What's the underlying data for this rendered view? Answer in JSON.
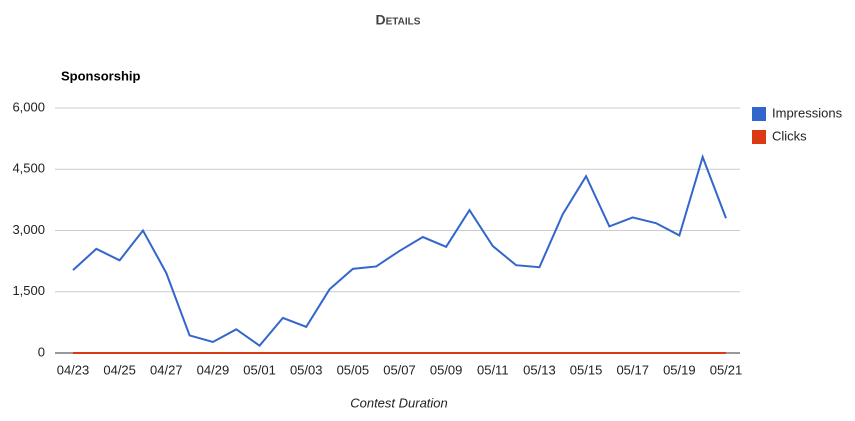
{
  "chart_data": {
    "type": "line",
    "title": "Details",
    "subtitle": "Sponsorship",
    "x_label": "Contest Duration",
    "categories": [
      "04/23",
      null,
      "04/25",
      null,
      "04/27",
      null,
      "04/29",
      null,
      "05/01",
      null,
      "05/03",
      null,
      "05/05",
      null,
      "05/07",
      null,
      "05/09",
      null,
      "05/11",
      null,
      "05/13",
      null,
      "05/15",
      null,
      "05/17",
      null,
      "05/19",
      null,
      "05/21"
    ],
    "series": [
      {
        "name": "Impressions",
        "color": "#3366cc",
        "values": [
          2030,
          2550,
          2270,
          3000,
          1960,
          430,
          270,
          580,
          180,
          860,
          640,
          1560,
          2060,
          2120,
          2500,
          2840,
          2600,
          3500,
          2620,
          2150,
          2100,
          3400,
          4330,
          3100,
          3320,
          3180,
          2880,
          4800,
          3300
        ]
      },
      {
        "name": "Clicks",
        "color": "#dc3912",
        "values": [
          0,
          0,
          0,
          0,
          0,
          0,
          0,
          0,
          0,
          0,
          0,
          0,
          0,
          0,
          0,
          0,
          0,
          0,
          0,
          0,
          0,
          0,
          0,
          0,
          0,
          0,
          0,
          0,
          0
        ]
      }
    ],
    "ylim": [
      0,
      6000
    ],
    "yticks": [
      0,
      {
        "value": 1500,
        "label": "1,500"
      },
      {
        "value": 3000,
        "label": "3,000"
      },
      {
        "value": 4500,
        "label": "4,500"
      },
      {
        "value": 6000,
        "label": "6,000"
      }
    ],
    "grid": true,
    "legend": "right"
  }
}
